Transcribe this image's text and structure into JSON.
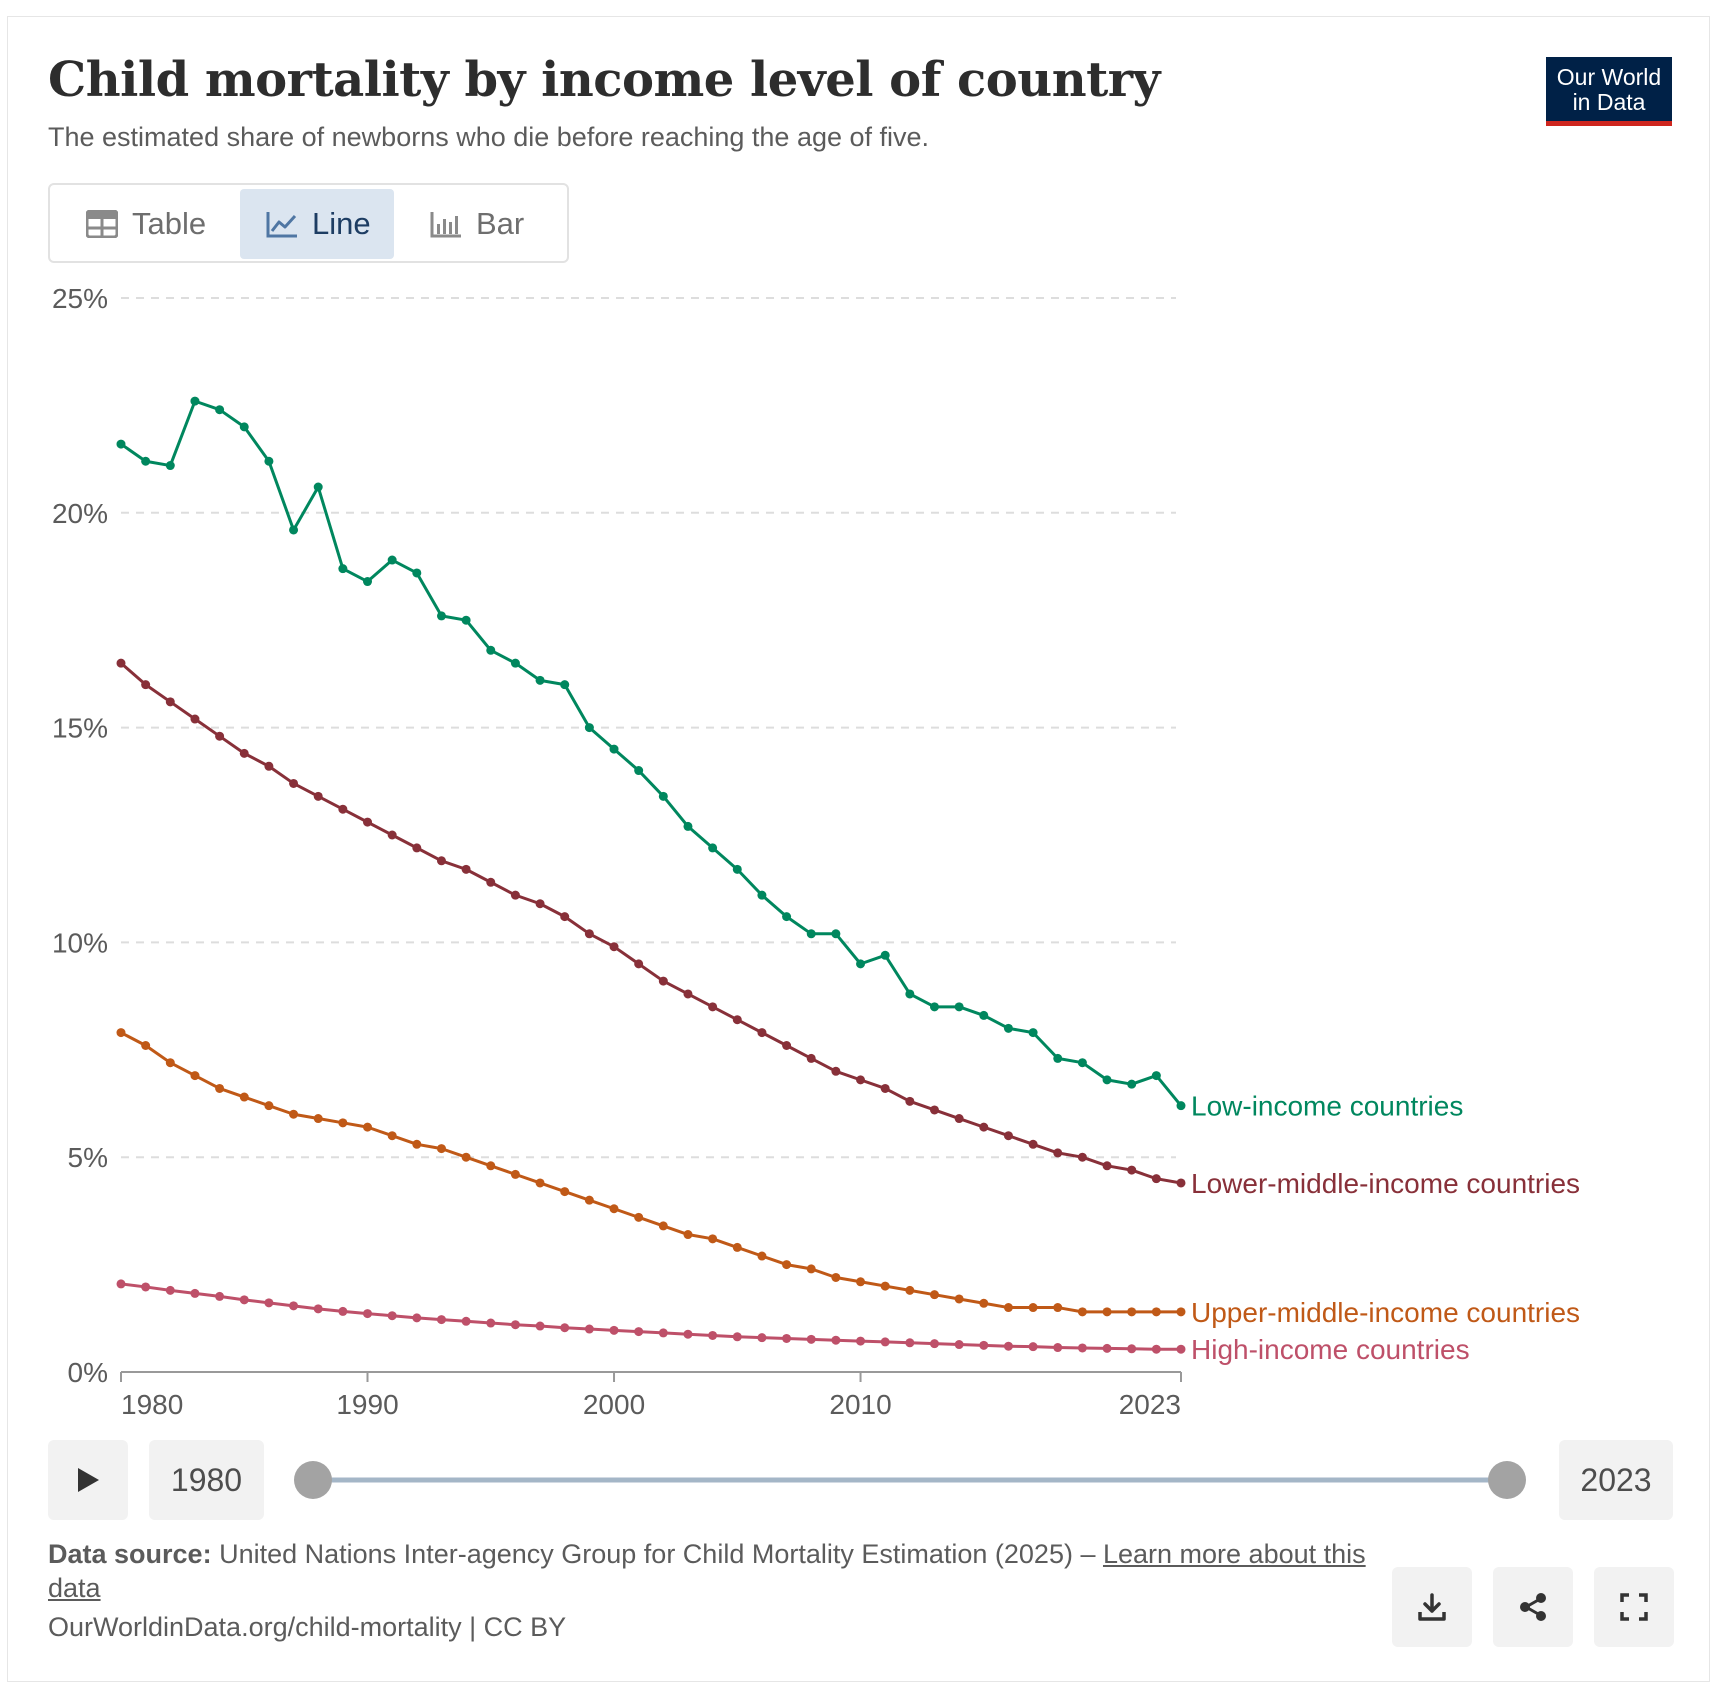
{
  "header": {
    "title": "Child mortality by income level of country",
    "subtitle": "The estimated share of newborns who die before reaching the age of five.",
    "logo_line1": "Our World",
    "logo_line2": "in Data"
  },
  "tabs": [
    {
      "label": "Table",
      "icon": "table-icon",
      "active": false
    },
    {
      "label": "Line",
      "icon": "line-chart-icon",
      "active": true
    },
    {
      "label": "Bar",
      "icon": "bar-chart-icon",
      "active": false
    }
  ],
  "chart_data": {
    "type": "line",
    "title": "Child mortality by income level of country",
    "subtitle": "The estimated share of newborns who die before reaching the age of five.",
    "xlabel": "",
    "ylabel": "",
    "xlim": [
      1980,
      2023
    ],
    "ylim": [
      0,
      25
    ],
    "x_ticks": [
      "1980",
      "1990",
      "2000",
      "2010",
      "2023"
    ],
    "y_ticks": [
      "0%",
      "5%",
      "10%",
      "15%",
      "20%",
      "25%"
    ],
    "grid": "horizontal dashed",
    "legend": "inline labels at right end of lines",
    "x": [
      1980,
      1981,
      1982,
      1983,
      1984,
      1985,
      1986,
      1987,
      1988,
      1989,
      1990,
      1991,
      1992,
      1993,
      1994,
      1995,
      1996,
      1997,
      1998,
      1999,
      2000,
      2001,
      2002,
      2003,
      2004,
      2005,
      2006,
      2007,
      2008,
      2009,
      2010,
      2011,
      2012,
      2013,
      2014,
      2015,
      2016,
      2017,
      2018,
      2019,
      2020,
      2021,
      2022,
      2023
    ],
    "series": [
      {
        "name": "Low-income countries",
        "color": "#00875e",
        "values": [
          21.6,
          21.2,
          21.1,
          22.6,
          22.4,
          22.0,
          21.2,
          19.6,
          20.6,
          18.7,
          18.4,
          18.9,
          18.6,
          17.6,
          17.5,
          16.8,
          16.5,
          16.1,
          16.0,
          15.0,
          14.5,
          14.0,
          13.4,
          12.7,
          12.2,
          11.7,
          11.1,
          10.6,
          10.2,
          10.2,
          9.5,
          9.7,
          8.8,
          8.5,
          8.5,
          8.3,
          8.0,
          7.9,
          7.3,
          7.2,
          6.8,
          6.7,
          6.9,
          6.2
        ]
      },
      {
        "name": "Lower-middle-income countries",
        "color": "#883039",
        "values": [
          16.5,
          16.0,
          15.6,
          15.2,
          14.8,
          14.4,
          14.1,
          13.7,
          13.4,
          13.1,
          12.8,
          12.5,
          12.2,
          11.9,
          11.7,
          11.4,
          11.1,
          10.9,
          10.6,
          10.2,
          9.9,
          9.5,
          9.1,
          8.8,
          8.5,
          8.2,
          7.9,
          7.6,
          7.3,
          7.0,
          6.8,
          6.6,
          6.3,
          6.1,
          5.9,
          5.7,
          5.5,
          5.3,
          5.1,
          5.0,
          4.8,
          4.7,
          4.5,
          4.4
        ]
      },
      {
        "name": "Upper-middle-income countries",
        "color": "#c05917",
        "values": [
          7.9,
          7.6,
          7.2,
          6.9,
          6.6,
          6.4,
          6.2,
          6.0,
          5.9,
          5.8,
          5.7,
          5.5,
          5.3,
          5.2,
          5.0,
          4.8,
          4.6,
          4.4,
          4.2,
          4.0,
          3.8,
          3.6,
          3.4,
          3.2,
          3.1,
          2.9,
          2.7,
          2.5,
          2.4,
          2.2,
          2.1,
          2.0,
          1.9,
          1.8,
          1.7,
          1.6,
          1.5,
          1.5,
          1.5,
          1.4,
          1.4,
          1.4,
          1.4,
          1.4
        ]
      },
      {
        "name": "High-income countries",
        "color": "#be5069",
        "values": [
          2.05,
          1.98,
          1.9,
          1.83,
          1.76,
          1.68,
          1.61,
          1.54,
          1.47,
          1.41,
          1.36,
          1.31,
          1.26,
          1.22,
          1.18,
          1.14,
          1.1,
          1.07,
          1.03,
          1.0,
          0.97,
          0.94,
          0.91,
          0.88,
          0.85,
          0.82,
          0.8,
          0.78,
          0.76,
          0.74,
          0.72,
          0.7,
          0.68,
          0.66,
          0.64,
          0.62,
          0.6,
          0.59,
          0.57,
          0.56,
          0.55,
          0.54,
          0.53,
          0.53
        ]
      }
    ]
  },
  "timeline": {
    "start_year": "1980",
    "end_year": "2023",
    "range_start_fraction": 0.0,
    "range_end_fraction": 1.0
  },
  "footer": {
    "source_label": "Data source:",
    "source_text": "United Nations Inter-agency Group for Child Mortality Estimation (2025) – ",
    "learn_more": "Learn more about this data",
    "url": "OurWorldinData.org/child-mortality | CC BY"
  },
  "colors": {
    "grid": "#dddddd",
    "axis": "#999999",
    "slider_track": "#a4b6c7",
    "slider_knob": "#a3a3a3",
    "active_tab_bg": "#dbe5f0"
  }
}
